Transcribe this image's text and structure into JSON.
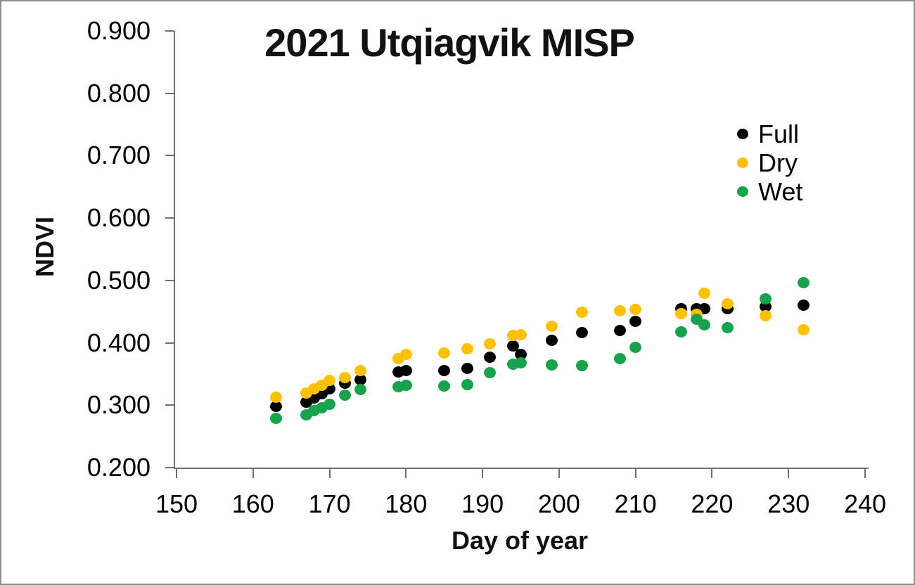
{
  "window": {
    "background": "#ffffff",
    "border_color": "#8f8f8f"
  },
  "chart_data": {
    "type": "scatter",
    "title": "2021 Utqiagvik MISP",
    "xlabel": "Day of year",
    "ylabel": "NDVI",
    "xlim": [
      150,
      240
    ],
    "ylim": [
      0.2,
      0.9
    ],
    "x_ticks": [
      150,
      160,
      170,
      180,
      190,
      200,
      210,
      220,
      230,
      240
    ],
    "y_ticks": [
      0.2,
      0.3,
      0.4,
      0.5,
      0.6,
      0.7,
      0.8,
      0.9
    ],
    "y_tick_decimals": 3,
    "grid": false,
    "legend_position": "inside-top-right",
    "axis_color": "#707070",
    "x": [
      163,
      167,
      168,
      169,
      170,
      172,
      174,
      179,
      180,
      185,
      188,
      191,
      194,
      195,
      199,
      203,
      208,
      210,
      216,
      218,
      219,
      222,
      227,
      232
    ],
    "series": [
      {
        "name": "Full",
        "color": "#000000",
        "values": [
          0.298,
          0.305,
          0.312,
          0.318,
          0.326,
          0.335,
          0.341,
          0.353,
          0.355,
          0.356,
          0.359,
          0.377,
          0.395,
          0.381,
          0.404,
          0.416,
          0.42,
          0.435,
          0.455,
          0.455,
          0.455,
          0.455,
          0.458,
          0.46
        ]
      },
      {
        "name": "Dry",
        "color": "#FFC000",
        "values": [
          0.313,
          0.32,
          0.326,
          0.332,
          0.34,
          0.344,
          0.356,
          0.375,
          0.381,
          0.384,
          0.39,
          0.398,
          0.412,
          0.413,
          0.427,
          0.449,
          0.451,
          0.454,
          0.447,
          0.446,
          0.48,
          0.463,
          0.444,
          0.421
        ]
      },
      {
        "name": "Wet",
        "color": "#17A34C",
        "values": [
          0.279,
          0.285,
          0.291,
          0.296,
          0.302,
          0.316,
          0.325,
          0.33,
          0.332,
          0.331,
          0.333,
          0.352,
          0.366,
          0.368,
          0.365,
          0.364,
          0.375,
          0.393,
          0.418,
          0.438,
          0.429,
          0.424,
          0.471,
          0.497
        ]
      }
    ]
  }
}
